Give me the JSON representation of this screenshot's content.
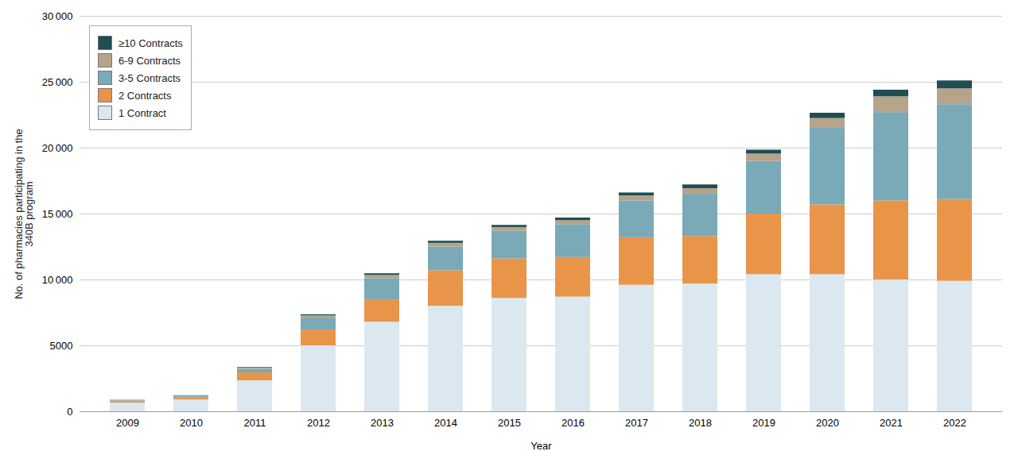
{
  "chart_data": {
    "type": "bar",
    "stacked": true,
    "xlabel": "Year",
    "ylabel": "No. of pharmacies participating in the\n340B program",
    "categories": [
      "2009",
      "2010",
      "2011",
      "2012",
      "2013",
      "2014",
      "2015",
      "2016",
      "2017",
      "2018",
      "2019",
      "2020",
      "2021",
      "2022"
    ],
    "series": [
      {
        "name": "1 Contract",
        "color": "#dce8f0",
        "values": [
          650,
          900,
          2350,
          5000,
          6800,
          8000,
          8600,
          8700,
          9600,
          9700,
          10400,
          10400,
          10000,
          9900
        ]
      },
      {
        "name": "2 Contracts",
        "color": "#e8954a",
        "values": [
          100,
          150,
          600,
          1200,
          1700,
          2700,
          3000,
          3000,
          3600,
          3600,
          4600,
          5300,
          6000,
          6200
        ]
      },
      {
        "name": "3-5 Contracts",
        "color": "#7aa9b8",
        "values": [
          80,
          100,
          280,
          900,
          1600,
          1800,
          2100,
          2500,
          2800,
          3200,
          4000,
          5800,
          6700,
          7200
        ]
      },
      {
        "name": "6-9 Contracts",
        "color": "#b5a48a",
        "values": [
          30,
          50,
          90,
          180,
          250,
          280,
          280,
          300,
          380,
          430,
          550,
          750,
          1200,
          1200
        ]
      },
      {
        "name": "≥10 Contracts",
        "color": "#1e4d52",
        "values": [
          15,
          20,
          40,
          80,
          120,
          160,
          160,
          200,
          220,
          280,
          300,
          400,
          500,
          600
        ]
      }
    ],
    "ylim": [
      0,
      30000
    ],
    "yticks": [
      0,
      5000,
      {
        "value": 10000,
        "label": "10 000"
      },
      {
        "value": 15000,
        "label": "15 000"
      },
      {
        "value": 20000,
        "label": "20 000"
      },
      {
        "value": 25000,
        "label": "25 000"
      },
      {
        "value": 30000,
        "label": "30 000"
      }
    ],
    "grid": true,
    "legend": "upper left"
  }
}
